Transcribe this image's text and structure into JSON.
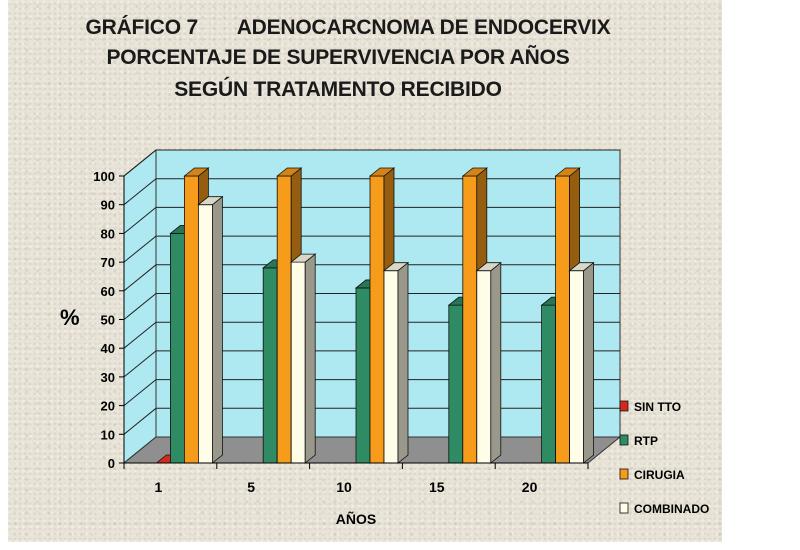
{
  "title": {
    "line1": "GRÁFICO 7       ADENOCARCNOMA DE ENDOCERVIX",
    "line2": "PORCENTAJE DE SUPERVIVENCIA POR AÑOS",
    "line3": "SEGÚN TRATAMENTO RECIBIDO"
  },
  "chart_data": {
    "type": "bar",
    "title": "ADENOCARCNOMA DE ENDOCERVIX",
    "xlabel": "AÑOS",
    "ylabel": "%",
    "categories": [
      "1",
      "5",
      "10",
      "15",
      "20"
    ],
    "ylim": [
      0,
      100
    ],
    "yticks": [
      0,
      10,
      20,
      30,
      40,
      50,
      60,
      70,
      80,
      90,
      100
    ],
    "grid": true,
    "legend_position": "right",
    "series": [
      {
        "name": "SIN TTO",
        "color": "#d42a1e",
        "values": [
          0,
          null,
          null,
          null,
          null
        ]
      },
      {
        "name": "RTP",
        "color": "#2e8b64",
        "values": [
          80,
          68,
          61,
          55,
          55
        ]
      },
      {
        "name": "CIRUGIA",
        "color": "#f79b1a",
        "values": [
          100,
          100,
          100,
          100,
          100
        ]
      },
      {
        "name": "COMBINADO",
        "color": "#fffde8",
        "values": [
          90,
          70,
          67,
          67,
          67
        ]
      }
    ]
  }
}
